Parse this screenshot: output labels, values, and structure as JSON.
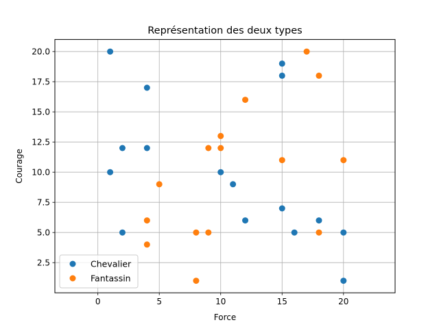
{
  "chart_data": {
    "type": "scatter",
    "title": "Représentation des deux types",
    "xlabel": "Force",
    "ylabel": "Courage",
    "xlim": [
      -3.5,
      24.2
    ],
    "ylim": [
      0.0,
      21.0
    ],
    "xticks": [
      0,
      5,
      10,
      15,
      20
    ],
    "yticks": [
      2.5,
      5.0,
      7.5,
      10.0,
      12.5,
      15.0,
      17.5,
      20.0
    ],
    "xtick_labels": [
      "0",
      "5",
      "10",
      "15",
      "20"
    ],
    "ytick_labels": [
      "2.5",
      "5.0",
      "7.5",
      "10.0",
      "12.5",
      "15.0",
      "17.5",
      "20.0"
    ],
    "grid": true,
    "legend_position": "lower-left",
    "series": [
      {
        "name": "Chevalier",
        "color": "#1f77b4",
        "points": [
          [
            1,
            20
          ],
          [
            15,
            19
          ],
          [
            15,
            18
          ],
          [
            4,
            17
          ],
          [
            2,
            12
          ],
          [
            4,
            12
          ],
          [
            1,
            10
          ],
          [
            10,
            10
          ],
          [
            11,
            9
          ],
          [
            15,
            7
          ],
          [
            12,
            6
          ],
          [
            18,
            6
          ],
          [
            2,
            5
          ],
          [
            16,
            5
          ],
          [
            20,
            5
          ],
          [
            20,
            1
          ]
        ]
      },
      {
        "name": "Fantassin",
        "color": "#ff7f0e",
        "points": [
          [
            17,
            20
          ],
          [
            18,
            18
          ],
          [
            12,
            16
          ],
          [
            10,
            13
          ],
          [
            9,
            12
          ],
          [
            10,
            12
          ],
          [
            15,
            11
          ],
          [
            20,
            11
          ],
          [
            5,
            9
          ],
          [
            4,
            6
          ],
          [
            8,
            5
          ],
          [
            9,
            5
          ],
          [
            18,
            5
          ],
          [
            4,
            4
          ],
          [
            8,
            1
          ]
        ]
      }
    ]
  }
}
